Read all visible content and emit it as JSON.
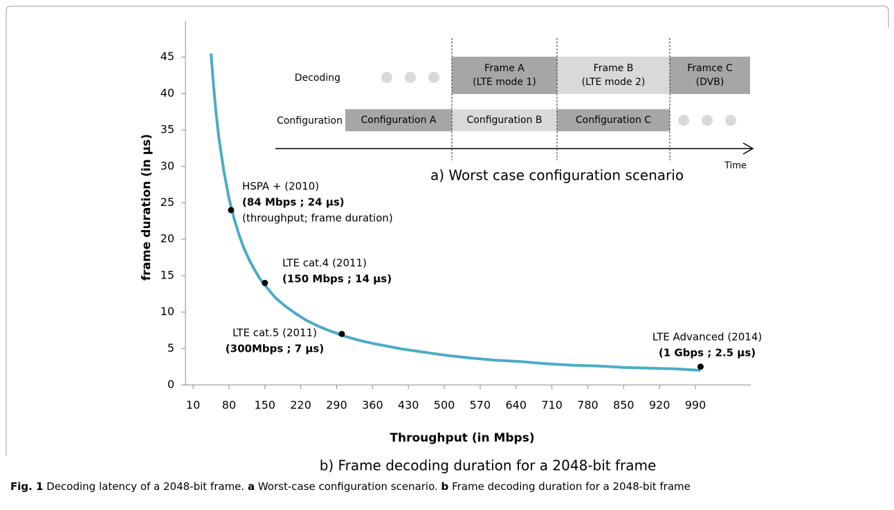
{
  "chart_data": {
    "type": "line",
    "x_label": "Throughput (in Mbps)",
    "y_label": "frame duration (in µs)",
    "caption": "b) Frame decoding duration for a 2048-bit frame",
    "x": [
      45,
      50,
      55,
      60,
      70,
      80,
      90,
      100,
      110,
      120,
      130,
      140,
      150,
      170,
      190,
      210,
      230,
      250,
      270,
      290,
      300,
      330,
      360,
      390,
      420,
      450,
      480,
      510,
      550,
      600,
      650,
      700,
      750,
      800,
      850,
      900,
      950,
      1000
    ],
    "series": [
      {
        "name": "frame duration",
        "color": "#4bacc6",
        "values": [
          45.5,
          41,
          37.2,
          34.1,
          29.3,
          25.6,
          22.8,
          20.5,
          18.6,
          17.1,
          15.8,
          14.6,
          13.7,
          12,
          10.8,
          9.8,
          8.9,
          8.2,
          7.6,
          7.1,
          6.8,
          6.2,
          5.7,
          5.3,
          4.9,
          4.6,
          4.3,
          4,
          3.7,
          3.4,
          3.2,
          2.9,
          2.7,
          2.6,
          2.4,
          2.3,
          2.2,
          2
        ]
      }
    ],
    "points": {
      "x": [
        84,
        150,
        300,
        1000
      ],
      "values": [
        24,
        14,
        7,
        2.5
      ],
      "color": "#000000"
    },
    "annotations": [
      {
        "lines": [
          "HSPA +  (2010)",
          "(84 Mbps ; 24 µs)",
          "(throughput; frame duration)"
        ]
      },
      {
        "lines": [
          "LTE cat.4 (2011)",
          "(150 Mbps ; 14 µs)"
        ]
      },
      {
        "lines": [
          "LTE cat.5 (2011)",
          "(300Mbps ; 7 µs)"
        ]
      },
      {
        "lines": [
          "LTE Advanced (2014)",
          "(1 Gbps ; 2.5 µs)"
        ]
      }
    ],
    "xlim": [
      -5,
      1098
    ],
    "xticks": [
      10,
      80,
      150,
      220,
      290,
      360,
      430,
      500,
      570,
      640,
      710,
      780,
      850,
      920,
      990
    ],
    "ylim": [
      0,
      50
    ],
    "yticks": [
      0,
      5,
      10,
      15,
      20,
      25,
      30,
      35,
      40,
      45
    ]
  },
  "diagram": {
    "title": "a) Worst case configuration scenario",
    "time_label": "Time",
    "rows": [
      {
        "label": "Decoding",
        "blocks": [
          [
            "Frame A",
            "(LTE mode 1)"
          ],
          [
            "Frame B",
            "(LTE mode 2)"
          ],
          [
            "Framce C",
            "(DVB)"
          ]
        ]
      },
      {
        "label": "Configuration",
        "blocks": [
          [
            "Configuration A"
          ],
          [
            "Configuration B"
          ],
          [
            "Configuration C"
          ]
        ]
      }
    ]
  },
  "figure_caption": {
    "label": "Fig. 1",
    "parts": [
      "Decoding latency of a 2048-bit frame. ",
      "a",
      " Worst-case configuration scenario. ",
      "b",
      " Frame decoding duration for a 2048-bit frame"
    ]
  }
}
